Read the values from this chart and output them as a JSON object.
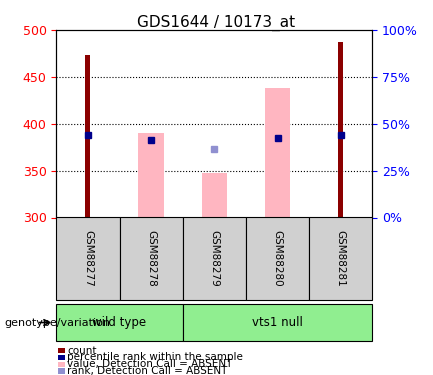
{
  "title": "GDS1644 / 10173_at",
  "samples": [
    "GSM88277",
    "GSM88278",
    "GSM88279",
    "GSM88280",
    "GSM88281"
  ],
  "ylim_left": [
    300,
    500
  ],
  "ylim_right": [
    0,
    100
  ],
  "yticks_left": [
    300,
    350,
    400,
    450,
    500
  ],
  "yticks_right": [
    0,
    25,
    50,
    75,
    100
  ],
  "red_bars": {
    "GSM88277": 473,
    "GSM88281": 487
  },
  "pink_bars": {
    "GSM88278": [
      300,
      390
    ],
    "GSM88279": [
      300,
      348
    ],
    "GSM88280": [
      300,
      438
    ]
  },
  "blue_markers": {
    "GSM88277": 388,
    "GSM88278": 383,
    "GSM88280": 385,
    "GSM88281": 388
  },
  "lavender_markers": {
    "GSM88279": 373
  },
  "groups": [
    {
      "label": "wild type",
      "samples": [
        "GSM88277",
        "GSM88278"
      ]
    },
    {
      "label": "vts1 null",
      "samples": [
        "GSM88279",
        "GSM88280",
        "GSM88281"
      ]
    }
  ],
  "group_color": "#90EE90",
  "sample_box_color": "#d0d0d0",
  "bar_color_red": "#8B0000",
  "bar_color_pink": "#FFB6C1",
  "marker_color_blue": "#00008B",
  "marker_color_lavender": "#9090D0",
  "legend_items": [
    {
      "label": "count",
      "color": "#8B0000",
      "marker": "s"
    },
    {
      "label": "percentile rank within the sample",
      "color": "#00008B",
      "marker": "s"
    },
    {
      "label": "value, Detection Call = ABSENT",
      "color": "#FFB6C1",
      "marker": "s"
    },
    {
      "label": "rank, Detection Call = ABSENT",
      "color": "#9090D0",
      "marker": "s"
    }
  ]
}
